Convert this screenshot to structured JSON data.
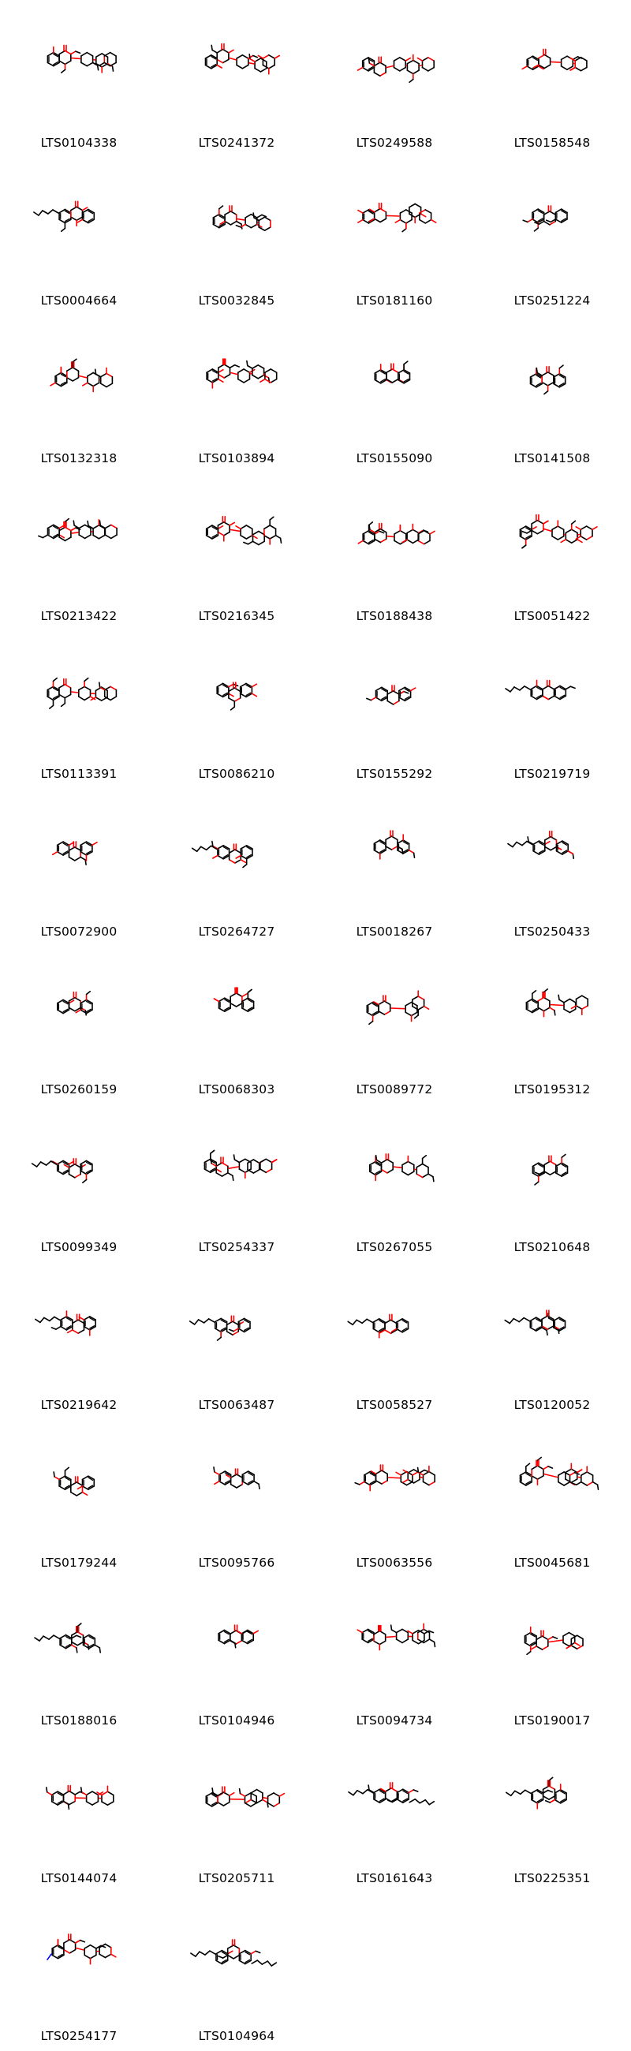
{
  "colors": {
    "bond": "#000000",
    "oxygen": "#ff0000",
    "nitrogen": "#0000ff",
    "background": "#ffffff"
  },
  "molecules": [
    {
      "id": "LTS0104338",
      "kind": "flavone-glycoside"
    },
    {
      "id": "LTS0241372",
      "kind": "flavone-glycoside"
    },
    {
      "id": "LTS0249588",
      "kind": "flavone-glycoside"
    },
    {
      "id": "LTS0158548",
      "kind": "flavone-glycoside"
    },
    {
      "id": "LTS0004664",
      "kind": "prenyl-flavone"
    },
    {
      "id": "LTS0032845",
      "kind": "flavone-diglycoside"
    },
    {
      "id": "LTS0181160",
      "kind": "flavone-glycoside"
    },
    {
      "id": "LTS0251224",
      "kind": "flavanone"
    },
    {
      "id": "LTS0132318",
      "kind": "chalcone-glycoside"
    },
    {
      "id": "LTS0103894",
      "kind": "isoflavone-glycoside"
    },
    {
      "id": "LTS0155090",
      "kind": "flavanone"
    },
    {
      "id": "LTS0141508",
      "kind": "flavone"
    },
    {
      "id": "LTS0213422",
      "kind": "isoflavone-glycoside"
    },
    {
      "id": "LTS0216345",
      "kind": "isoflavone-glycoside"
    },
    {
      "id": "LTS0188438",
      "kind": "isoflavone-glycoside"
    },
    {
      "id": "LTS0051422",
      "kind": "chalcone-glycoside"
    },
    {
      "id": "LTS0113391",
      "kind": "chalcone-glycoside"
    },
    {
      "id": "LTS0086210",
      "kind": "pyrano-flavone"
    },
    {
      "id": "LTS0155292",
      "kind": "flavone"
    },
    {
      "id": "LTS0219719",
      "kind": "prenyl-flavone"
    },
    {
      "id": "LTS0072900",
      "kind": "flavanone"
    },
    {
      "id": "LTS0264727",
      "kind": "prenyl-flavone"
    },
    {
      "id": "LTS0018267",
      "kind": "methoxy-flavone"
    },
    {
      "id": "LTS0250433",
      "kind": "prenyl-flavanone"
    },
    {
      "id": "LTS0260159",
      "kind": "isoflavone"
    },
    {
      "id": "LTS0068303",
      "kind": "flavanone"
    },
    {
      "id": "LTS0089772",
      "kind": "isoflavone-glycoside"
    },
    {
      "id": "LTS0195312",
      "kind": "flavone-glycoside"
    },
    {
      "id": "LTS0099349",
      "kind": "prenyl-flavanone"
    },
    {
      "id": "LTS0254337",
      "kind": "flavone-glycoside"
    },
    {
      "id": "LTS0267055",
      "kind": "flavone-glycoside"
    },
    {
      "id": "LTS0210648",
      "kind": "flavone"
    },
    {
      "id": "LTS0219642",
      "kind": "prenyl-flavone"
    },
    {
      "id": "LTS0063487",
      "kind": "prenyl-flavanone"
    },
    {
      "id": "LTS0058527",
      "kind": "prenyl-flavanone"
    },
    {
      "id": "LTS0120052",
      "kind": "prenyl-flavanone"
    },
    {
      "id": "LTS0179244",
      "kind": "isoflavone"
    },
    {
      "id": "LTS0095766",
      "kind": "flavone"
    },
    {
      "id": "LTS0063556",
      "kind": "chalcone-glycoside-large"
    },
    {
      "id": "LTS0045681",
      "kind": "chalcone-glycoside"
    },
    {
      "id": "LTS0188016",
      "kind": "prenyl-flavanone"
    },
    {
      "id": "LTS0104946",
      "kind": "flavanone"
    },
    {
      "id": "LTS0094734",
      "kind": "chalcone-glycoside"
    },
    {
      "id": "LTS0190017",
      "kind": "chalcone-glycoside"
    },
    {
      "id": "LTS0144074",
      "kind": "isoflavone-glycoside"
    },
    {
      "id": "LTS0205711",
      "kind": "chalcone-glycoside-large"
    },
    {
      "id": "LTS0161643",
      "kind": "diprenyl-flavone"
    },
    {
      "id": "LTS0225351",
      "kind": "prenyl-flavone"
    },
    {
      "id": "LTS0254177",
      "kind": "indole-isoflavone-glycoside"
    },
    {
      "id": "LTS0104964",
      "kind": "diprenyl-flavone"
    }
  ]
}
